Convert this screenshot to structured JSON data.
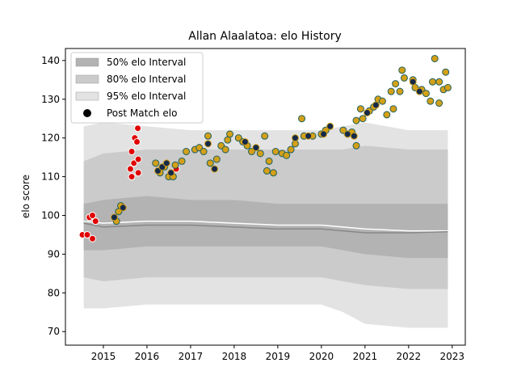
{
  "chart_data": {
    "type": "scatter",
    "title": "Allan Alaalatoa: elo History",
    "ylabel": "elo score",
    "xlim": [
      2014.13,
      2023.3
    ],
    "ylim": [
      66.5,
      143.1
    ],
    "xticks": [
      2015,
      2016,
      2017,
      2018,
      2019,
      2020,
      2021,
      2022,
      2023
    ],
    "yticks": [
      70,
      80,
      90,
      100,
      110,
      120,
      130,
      140
    ],
    "legend_position": "upper left",
    "bands": [
      {
        "name": "95% elo Interval",
        "color": "#e3e3e3",
        "x": [
          2014.55,
          2015,
          2016,
          2017,
          2018,
          2019,
          2020,
          2020.5,
          2021,
          2022,
          2022.9
        ],
        "upper": [
          123,
          124,
          123,
          122,
          122,
          122,
          122,
          123,
          124,
          122,
          122
        ],
        "lower": [
          76,
          76,
          77,
          77,
          77,
          77,
          77,
          75,
          72,
          71,
          71
        ]
      },
      {
        "name": "80% elo Interval",
        "color": "#cbcbcb",
        "x": [
          2014.55,
          2015,
          2016,
          2017,
          2018,
          2019,
          2020,
          2020.5,
          2021,
          2022,
          2022.9
        ],
        "upper": [
          114,
          116,
          117,
          117,
          117,
          117,
          117,
          117,
          118,
          117,
          117
        ],
        "lower": [
          84,
          83,
          84,
          84,
          84,
          84,
          84,
          83,
          82,
          81,
          81
        ]
      },
      {
        "name": "50% elo Interval",
        "color": "#b3b3b3",
        "x": [
          2014.55,
          2015,
          2016,
          2017,
          2018,
          2019,
          2020,
          2020.5,
          2021,
          2022,
          2022.9
        ],
        "upper": [
          103,
          104,
          105,
          104,
          104,
          103,
          103,
          103,
          103,
          103,
          103
        ],
        "lower": [
          91,
          91,
          92,
          92,
          92,
          92,
          92,
          91,
          90,
          89,
          89
        ]
      }
    ],
    "band_legend_order": [
      2,
      1,
      0
    ],
    "lines": [
      {
        "color": "#ffffff",
        "x": [
          2014.55,
          2015,
          2016,
          2017,
          2018,
          2019,
          2020,
          2020.5,
          2021,
          2022,
          2022.9
        ],
        "values": [
          98.5,
          98,
          98.5,
          98.5,
          98,
          97.5,
          97.5,
          97,
          96.5,
          96,
          96
        ]
      },
      {
        "color": "#888888",
        "x": [
          2014.55,
          2015,
          2016,
          2017,
          2018,
          2019,
          2020,
          2020.5,
          2021,
          2022,
          2022.9
        ],
        "values": [
          98,
          97,
          97.5,
          97.5,
          97,
          96.5,
          96.5,
          96,
          95.5,
          95.5,
          95.8
        ]
      }
    ],
    "series": [
      {
        "name": "Post Match elo",
        "color": "#000000",
        "groups": [
          {
            "fill": "#e00000",
            "edge": "#ffffff",
            "x": [
              2014.52,
              2014.63,
              2014.68,
              2014.75,
              2014.75,
              2014.82,
              2015.65,
              2015.62,
              2015.65,
              2015.7,
              2015.72,
              2015.77,
              2015.79,
              2015.8,
              2015.8,
              2016.67
            ],
            "values": [
              95,
              95,
              99.5,
              100,
              94,
              98.5,
              116.5,
              112,
              110,
              113.5,
              120,
              119,
              122.5,
              114.5,
              111,
              112
            ]
          },
          {
            "fill": "#d4a017",
            "edge": "#1f5f5f",
            "x": [
              2015.3,
              2015.35,
              2015.4,
              2016.2,
              2016.3,
              2016.4,
              2016.5,
              2016.6,
              2016.65,
              2016.8,
              2016.9,
              2017.1,
              2017.2,
              2017.3,
              2017.4,
              2017.45,
              2017.6,
              2017.7,
              2017.8,
              2017.85,
              2017.9,
              2018.1,
              2018.2,
              2018.3,
              2018.4,
              2018.6,
              2018.7,
              2018.75,
              2018.8,
              2018.9,
              2018.95,
              2019.1,
              2019.2,
              2019.3,
              2019.4,
              2019.55,
              2019.6,
              2019.8,
              2020.0,
              2020.1,
              2020.5,
              2020.6,
              2020.7,
              2020.8,
              2020.8,
              2020.9,
              2020.95,
              2021.1,
              2021.2,
              2021.3,
              2021.4,
              2021.5,
              2021.6,
              2021.65,
              2021.7,
              2021.8,
              2021.85,
              2021.9,
              2022.1,
              2022.15,
              2022.3,
              2022.4,
              2022.5,
              2022.55,
              2022.6,
              2022.7,
              2022.7,
              2022.8,
              2022.85,
              2022.9
            ],
            "values": [
              98.5,
              101,
              102.5,
              113.5,
              111,
              112.5,
              110,
              110,
              113,
              114,
              116.5,
              117,
              117.5,
              116.5,
              120.5,
              113.5,
              114.5,
              118,
              117,
              119.5,
              121,
              120,
              119,
              118,
              116.5,
              116,
              120.5,
              111.5,
              114,
              111,
              116.5,
              116,
              115.5,
              117,
              118.5,
              125,
              120.5,
              120.5,
              121,
              122,
              122,
              121,
              121.5,
              118,
              124.5,
              127.5,
              125,
              127,
              128,
              130,
              129.5,
              126,
              132,
              127.5,
              134,
              132,
              137.5,
              135.5,
              135,
              133,
              132.5,
              131.5,
              129.5,
              134.5,
              140.5,
              129,
              134.5,
              132.5,
              137,
              133
            ]
          },
          {
            "fill": "#142a4a",
            "edge": "#d4a017",
            "x": [
              2015.25,
              2015.45,
              2016.25,
              2016.35,
              2016.45,
              2016.55,
              2017.4,
              2017.55,
              2018.25,
              2018.5,
              2019.4,
              2019.7,
              2020.05,
              2020.2,
              2020.6,
              2020.75,
              2021.05,
              2021.25,
              2022.1,
              2022.25
            ],
            "values": [
              99.5,
              102,
              111.5,
              112.5,
              113.5,
              111,
              118.5,
              112,
              119,
              117.5,
              120,
              120.5,
              121,
              123,
              121,
              120.5,
              126.5,
              128.5,
              134.5,
              132
            ]
          }
        ]
      }
    ]
  }
}
